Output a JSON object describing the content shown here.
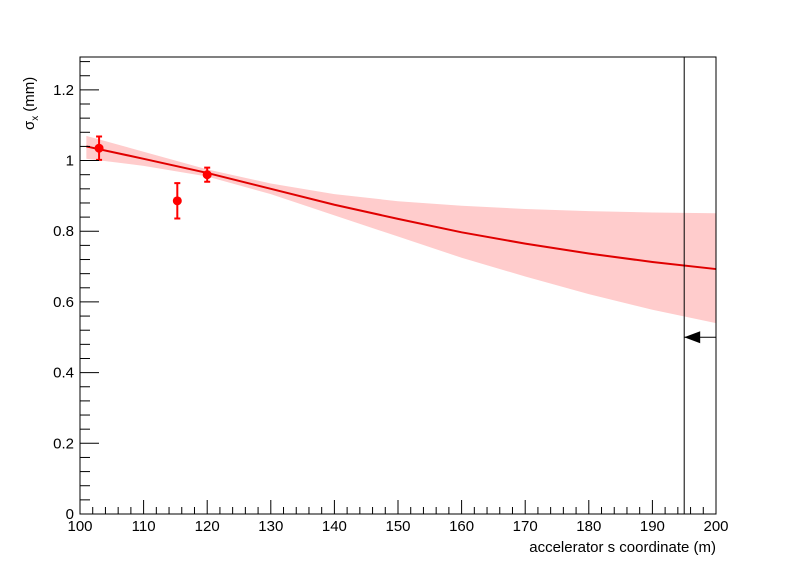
{
  "chart_data": {
    "type": "fit",
    "xlabel": "accelerator s coordinate (m)",
    "ylabel": {
      "symbol": "σ",
      "subscript": "x",
      "unit": "(mm)"
    },
    "xlim": [
      100,
      200
    ],
    "ylim": [
      0,
      1.293
    ],
    "xticks": [
      100,
      110,
      120,
      130,
      140,
      150,
      160,
      170,
      180,
      190,
      200
    ],
    "yticks": [
      0,
      0.2,
      0.4,
      0.6,
      0.8,
      1,
      1.2
    ],
    "points": {
      "color": "#ff0000",
      "x": [
        103,
        115.3,
        120
      ],
      "values": [
        1.035,
        0.886,
        0.96
      ],
      "errors": [
        0.033,
        0.05,
        0.02
      ]
    },
    "fit": {
      "color": "#e00000",
      "band_color": "#ffcccc",
      "x": [
        101,
        110,
        120,
        130,
        140,
        150,
        160,
        170,
        180,
        190,
        200
      ],
      "values": [
        1.04,
        1.005,
        0.965,
        0.92,
        0.875,
        0.835,
        0.797,
        0.765,
        0.737,
        0.713,
        0.693
      ],
      "upper": [
        1.07,
        1.025,
        0.975,
        0.935,
        0.905,
        0.885,
        0.872,
        0.863,
        0.857,
        0.853,
        0.851
      ],
      "lower": [
        1.005,
        0.985,
        0.955,
        0.905,
        0.845,
        0.785,
        0.725,
        0.672,
        0.622,
        0.578,
        0.54
      ]
    },
    "marker_line_x": 195,
    "arrow": {
      "x_from": 200,
      "x_to": 195,
      "y": 0.5
    }
  }
}
